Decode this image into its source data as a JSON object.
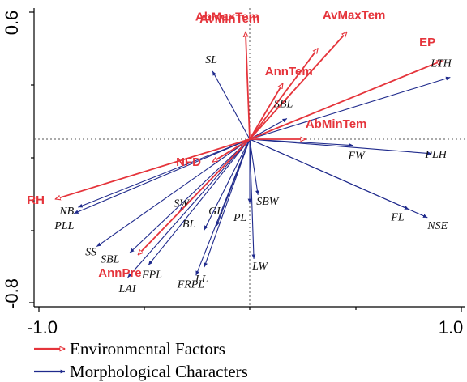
{
  "chart_data": {
    "type": "scatter",
    "title": "",
    "xlabel": "",
    "ylabel": "",
    "xlim": [
      -1.0,
      1.0
    ],
    "ylim": [
      -0.8,
      0.6
    ],
    "x_ticks": [
      "-1.0",
      "1.0"
    ],
    "y_ticks": [
      "0.6",
      "-0.8"
    ],
    "grid": false,
    "zero_lines": true,
    "legend_position": "bottom-left",
    "colors": {
      "environmental": "#e5343b",
      "morphological": "#1f2a8c"
    },
    "series": [
      {
        "name": "Environmental Factors",
        "marker": "open-arrow",
        "vectors": [
          {
            "label": "AbMaxTem",
            "x": -0.02,
            "y": 0.52
          },
          {
            "label": "AnnTem",
            "x": 0.16,
            "y": 0.27
          },
          {
            "label": "AvMaxTem",
            "x": 0.47,
            "y": 0.52
          },
          {
            "label": "EP",
            "x": 0.93,
            "y": 0.38
          },
          {
            "label": "AvMinTem",
            "x": 0.33,
            "y": 0.44
          },
          {
            "label": "AbMinTem",
            "x": 0.27,
            "y": 0.0
          },
          {
            "label": "NFD",
            "x": -0.18,
            "y": -0.11
          },
          {
            "label": "RH",
            "x": -0.94,
            "y": -0.29
          },
          {
            "label": "AnnPre",
            "x": -0.54,
            "y": -0.56
          }
        ]
      },
      {
        "name": "Morphological Characters",
        "marker": "filled-arrow",
        "vectors": [
          {
            "label": "SL",
            "x": -0.18,
            "y": 0.33
          },
          {
            "label": "LTH",
            "x": 0.97,
            "y": 0.3
          },
          {
            "label": "SBL",
            "x": 0.18,
            "y": 0.1
          },
          {
            "label": "FW",
            "x": 0.5,
            "y": -0.03
          },
          {
            "label": "PLH",
            "x": 0.88,
            "y": -0.07
          },
          {
            "label": "NSE",
            "x": 0.86,
            "y": -0.38
          },
          {
            "label": "FL",
            "x": 0.77,
            "y": -0.34
          },
          {
            "label": "SBW",
            "x": 0.04,
            "y": -0.27
          },
          {
            "label": "PL",
            "x": 0.0,
            "y": -0.31
          },
          {
            "label": "LW",
            "x": 0.02,
            "y": -0.58
          },
          {
            "label": "LL",
            "x": -0.22,
            "y": -0.62
          },
          {
            "label": "FRPL",
            "x": -0.26,
            "y": -0.66
          },
          {
            "label": "GL",
            "x": -0.16,
            "y": -0.42
          },
          {
            "label": "BL",
            "x": -0.22,
            "y": -0.44
          },
          {
            "label": "SW",
            "x": -0.34,
            "y": -0.35
          },
          {
            "label": "NB",
            "x": -0.83,
            "y": -0.33
          },
          {
            "label": "PLL",
            "x": -0.85,
            "y": -0.36
          },
          {
            "label": "SS",
            "x": -0.74,
            "y": -0.52
          },
          {
            "label": "SBL",
            "x": -0.58,
            "y": -0.55
          },
          {
            "label": "FPL",
            "x": -0.49,
            "y": -0.61
          },
          {
            "label": "LAI",
            "x": -0.59,
            "y": -0.67
          }
        ]
      }
    ]
  },
  "legend": {
    "environmental_label": "Environmental Factors",
    "morphological_label": "Morphological Characters"
  }
}
